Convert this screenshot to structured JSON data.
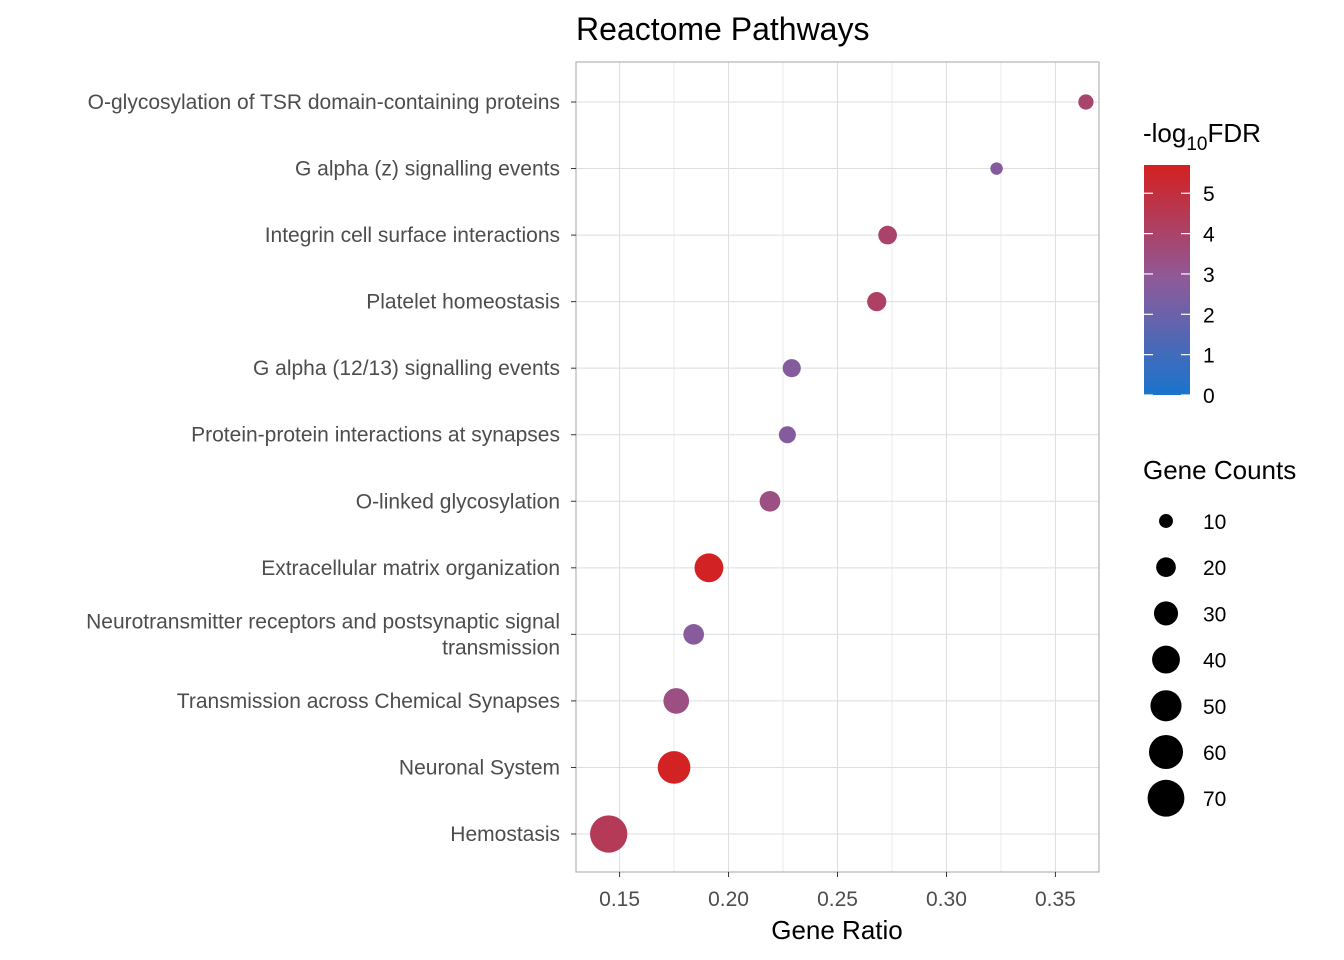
{
  "chart_data": {
    "type": "scatter",
    "title": "Reactome Pathways",
    "xlabel": "Gene Ratio",
    "ylabel": "",
    "xlim": [
      0.13,
      0.37
    ],
    "xticks": [
      0.15,
      0.2,
      0.25,
      0.3,
      0.35
    ],
    "xtick_labels": [
      "0.15",
      "0.20",
      "0.25",
      "0.30",
      "0.35"
    ],
    "grid": true,
    "points": [
      {
        "pathway": "O-glycosylation of TSR domain-containing proteins",
        "gene_ratio": 0.364,
        "gene_count": 12,
        "neg_log10_fdr": 3.9
      },
      {
        "pathway": "G alpha (z) signalling events",
        "gene_ratio": 0.323,
        "gene_count": 8,
        "neg_log10_fdr": 2.6
      },
      {
        "pathway": "Integrin cell surface interactions",
        "gene_ratio": 0.273,
        "gene_count": 18,
        "neg_log10_fdr": 4.0
      },
      {
        "pathway": "Platelet homeostasis",
        "gene_ratio": 0.268,
        "gene_count": 19,
        "neg_log10_fdr": 4.1
      },
      {
        "pathway": "G alpha (12/13) signalling events",
        "gene_ratio": 0.229,
        "gene_count": 17,
        "neg_log10_fdr": 2.6
      },
      {
        "pathway": "Protein-protein interactions at synapses",
        "gene_ratio": 0.227,
        "gene_count": 15,
        "neg_log10_fdr": 2.6
      },
      {
        "pathway": "O-linked glycosylation",
        "gene_ratio": 0.219,
        "gene_count": 22,
        "neg_log10_fdr": 3.4
      },
      {
        "pathway": "Extracellular matrix organization",
        "gene_ratio": 0.191,
        "gene_count": 43,
        "neg_log10_fdr": 5.6
      },
      {
        "pathway": "Neurotransmitter receptors and postsynaptic signal transmission",
        "pathway_lines": [
          "Neurotransmitter receptors and postsynaptic signal",
          "transmission"
        ],
        "gene_ratio": 0.184,
        "gene_count": 22,
        "neg_log10_fdr": 2.7
      },
      {
        "pathway": "Transmission across Chemical Synapses",
        "gene_ratio": 0.176,
        "gene_count": 34,
        "neg_log10_fdr": 3.4
      },
      {
        "pathway": "Neuronal System",
        "gene_ratio": 0.175,
        "gene_count": 55,
        "neg_log10_fdr": 5.6
      },
      {
        "pathway": "Hemostasis",
        "gene_ratio": 0.145,
        "gene_count": 72,
        "neg_log10_fdr": 4.4
      }
    ],
    "color_legend": {
      "title_prefix": "-log",
      "title_subscript": "10",
      "title_suffix": "FDR",
      "range": [
        0,
        5.7
      ],
      "ticks": [
        0,
        1,
        2,
        3,
        4,
        5
      ],
      "tick_labels": [
        "0",
        "1",
        "2",
        "3",
        "4",
        "5"
      ],
      "low_color": "#1874cd",
      "mid_color": "#8e5a9a",
      "high_color": "#d42020"
    },
    "size_legend": {
      "title": "Gene Counts",
      "values": [
        10,
        20,
        30,
        40,
        50,
        60,
        70
      ],
      "labels": [
        "10",
        "20",
        "30",
        "40",
        "50",
        "60",
        "70"
      ],
      "placement": "right"
    }
  }
}
